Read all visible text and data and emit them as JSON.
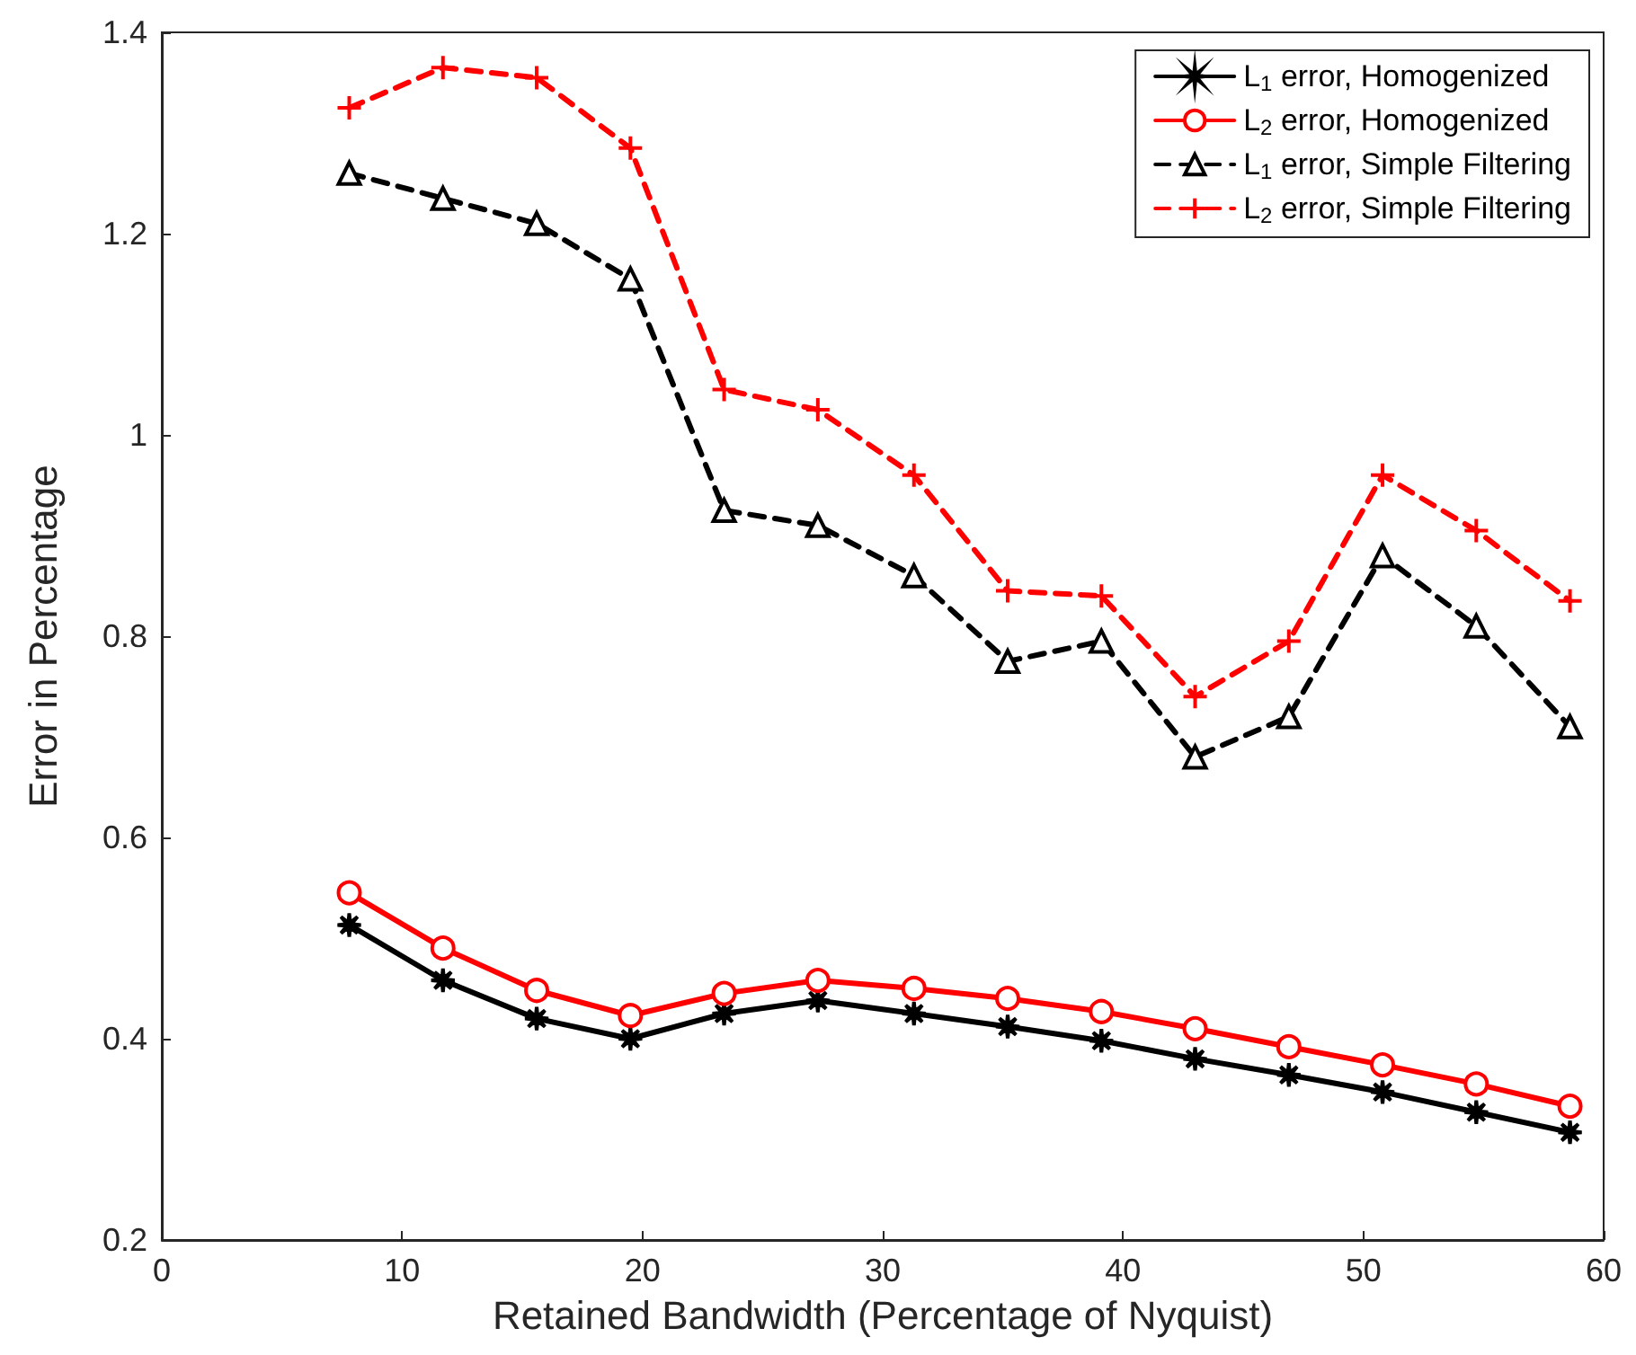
{
  "chart_data": {
    "type": "line",
    "xlabel": "Retained Bandwidth (Percentage of Nyquist)",
    "ylabel": "Error in Percentage",
    "x": [
      7.8,
      11.7,
      15.6,
      19.5,
      23.4,
      27.3,
      31.3,
      35.2,
      39.1,
      43.0,
      46.9,
      50.8,
      54.7,
      58.6
    ],
    "series": [
      {
        "name": "L$_{1}$ error, Homogenized",
        "color": "#000000",
        "marker": "star",
        "line_style": "solid",
        "values": [
          0.513,
          0.458,
          0.42,
          0.4,
          0.425,
          0.438,
          0.425,
          0.412,
          0.398,
          0.38,
          0.364,
          0.347,
          0.327,
          0.307
        ]
      },
      {
        "name": "L$_{2}$ error, Homogenized",
        "color": "#ff0000",
        "marker": "circle",
        "line_style": "solid",
        "values": [
          0.545,
          0.49,
          0.448,
          0.423,
          0.445,
          0.458,
          0.45,
          0.44,
          0.427,
          0.41,
          0.392,
          0.374,
          0.355,
          0.333
        ]
      },
      {
        "name": "L$_{1}$ error, Simple Filtering",
        "color": "#000000",
        "marker": "triangle",
        "line_style": "dashed",
        "values": [
          1.26,
          1.235,
          1.21,
          1.155,
          0.925,
          0.91,
          0.86,
          0.775,
          0.795,
          0.68,
          0.72,
          0.88,
          0.81,
          0.71
        ]
      },
      {
        "name": "L$_{2}$ error, Simple Filtering",
        "color": "#ff0000",
        "marker": "cross",
        "line_style": "dashed",
        "values": [
          1.325,
          1.365,
          1.355,
          1.285,
          1.045,
          1.025,
          0.96,
          0.845,
          0.84,
          0.74,
          0.795,
          0.96,
          0.905,
          0.835
        ]
      }
    ],
    "xlim": [
      0,
      60
    ],
    "xticks": [
      0,
      10,
      20,
      30,
      40,
      50,
      60
    ],
    "ylim": [
      0.2,
      1.4
    ],
    "yticks": [
      0.2,
      0.4,
      0.6,
      0.8,
      1,
      1.2,
      1.4
    ],
    "grid": false,
    "legend": "top right"
  }
}
